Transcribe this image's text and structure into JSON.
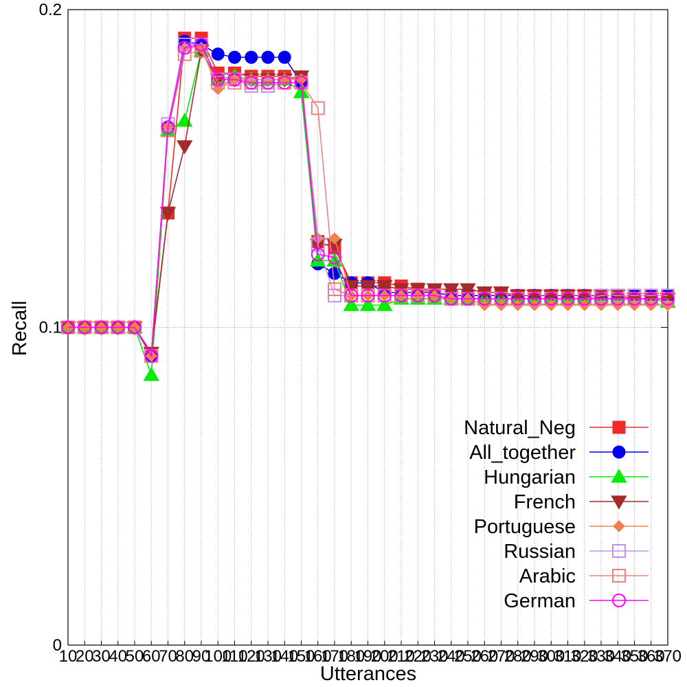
{
  "chart_data": {
    "type": "line",
    "xlabel": "Utterances",
    "ylabel": "Recall",
    "ylim": [
      0,
      0.2
    ],
    "y_ticks": [
      "0",
      "0.1",
      "0.2"
    ],
    "grid": "vertical dotted",
    "legend_position": "bottom-right",
    "categories": [
      "10",
      "20",
      "30",
      "40",
      "50",
      "60",
      "70",
      "80",
      "90",
      "100",
      "110",
      "120",
      "130",
      "140",
      "150",
      "160",
      "170",
      "180",
      "190",
      "200",
      "210",
      "220",
      "230",
      "240",
      "250",
      "260",
      "270",
      "280",
      "290",
      "300",
      "310",
      "320",
      "330",
      "340",
      "350",
      "360",
      "370"
    ],
    "series": [
      {
        "name": "Natural_Neg",
        "color": "#ee2a2a",
        "marker": "square-filled",
        "values": [
          0.1,
          0.1,
          0.1,
          0.1,
          0.1,
          0.091,
          0.136,
          0.191,
          0.191,
          0.18,
          0.18,
          0.179,
          0.179,
          0.179,
          0.178,
          0.127,
          0.125,
          0.114,
          0.114,
          0.114,
          0.113,
          0.112,
          0.111,
          0.11,
          0.11,
          0.11,
          0.11,
          0.11,
          0.11,
          0.11,
          0.11,
          0.11,
          0.11,
          0.11,
          0.11,
          0.11,
          0.11
        ]
      },
      {
        "name": "All_together ",
        "color": "#0000ee",
        "marker": "circle-filled",
        "values": [
          0.1,
          0.1,
          0.1,
          0.1,
          0.1,
          0.091,
          0.163,
          0.19,
          0.189,
          0.186,
          0.185,
          0.185,
          0.185,
          0.185,
          0.177,
          0.12,
          0.117,
          0.114,
          0.114,
          0.111,
          0.111,
          0.111,
          0.111,
          0.11,
          0.11,
          0.11,
          0.11,
          0.11,
          0.11,
          0.11,
          0.11,
          0.11,
          0.11,
          0.11,
          0.11,
          0.11,
          0.11
        ]
      },
      {
        "name": "Hungarian",
        "color": "#00ee00",
        "marker": "triangle-up-filled",
        "values": [
          0.1,
          0.1,
          0.1,
          0.1,
          0.1,
          0.085,
          0.162,
          0.165,
          0.187,
          0.178,
          0.179,
          0.178,
          0.178,
          0.178,
          0.174,
          0.121,
          0.121,
          0.107,
          0.107,
          0.107,
          0.109,
          0.109,
          0.109,
          0.109,
          0.109,
          0.109,
          0.109,
          0.109,
          0.109,
          0.109,
          0.109,
          0.109,
          0.109,
          0.109,
          0.109,
          0.109,
          0.108
        ]
      },
      {
        "name": "French",
        "color": "#a52a2a",
        "marker": "triangle-down-filled",
        "values": [
          0.1,
          0.1,
          0.1,
          0.1,
          0.1,
          0.092,
          0.136,
          0.157,
          0.187,
          0.178,
          0.178,
          0.178,
          0.178,
          0.178,
          0.179,
          0.126,
          0.126,
          0.113,
          0.113,
          0.113,
          0.112,
          0.112,
          0.112,
          0.112,
          0.112,
          0.111,
          0.111,
          0.11,
          0.11,
          0.11,
          0.11,
          0.11,
          0.11,
          0.11,
          0.109,
          0.109,
          0.109
        ]
      },
      {
        "name": "Portuguese",
        "color": "#f08050",
        "marker": "diamond-filled",
        "values": [
          0.1,
          0.1,
          0.1,
          0.1,
          0.1,
          0.091,
          0.163,
          0.188,
          0.188,
          0.175,
          0.178,
          0.178,
          0.178,
          0.178,
          0.178,
          0.128,
          0.128,
          0.11,
          0.11,
          0.11,
          0.11,
          0.11,
          0.11,
          0.109,
          0.109,
          0.107,
          0.107,
          0.107,
          0.107,
          0.107,
          0.107,
          0.107,
          0.107,
          0.107,
          0.107,
          0.107,
          0.107
        ]
      },
      {
        "name": "Russian",
        "color": "#c090f0",
        "marker": "square-open",
        "values": [
          0.1,
          0.1,
          0.1,
          0.1,
          0.1,
          0.091,
          0.164,
          0.189,
          0.189,
          0.178,
          0.178,
          0.176,
          0.176,
          0.177,
          0.177,
          0.126,
          0.11,
          0.11,
          0.11,
          0.11,
          0.11,
          0.11,
          0.11,
          0.109,
          0.109,
          0.109,
          0.109,
          0.109,
          0.109,
          0.109,
          0.109,
          0.109,
          0.11,
          0.11,
          0.11,
          0.11,
          0.11
        ]
      },
      {
        "name": "Arabic ",
        "color": "#f08080",
        "marker": "square-open",
        "values": [
          0.1,
          0.1,
          0.1,
          0.1,
          0.1,
          0.091,
          0.162,
          0.186,
          0.187,
          0.177,
          0.177,
          0.177,
          0.177,
          0.177,
          0.177,
          0.169,
          0.112,
          0.11,
          0.11,
          0.11,
          0.11,
          0.11,
          0.11,
          0.109,
          0.109,
          0.109,
          0.109,
          0.109,
          0.109,
          0.109,
          0.109,
          0.109,
          0.109,
          0.109,
          0.109,
          0.109,
          0.109
        ]
      },
      {
        "name": "German",
        "color": "#ff00ff",
        "marker": "circle-open",
        "values": [
          0.1,
          0.1,
          0.1,
          0.1,
          0.1,
          0.091,
          0.163,
          0.188,
          0.189,
          0.178,
          0.178,
          0.177,
          0.177,
          0.177,
          0.177,
          0.123,
          0.122,
          0.11,
          0.11,
          0.11,
          0.11,
          0.11,
          0.11,
          0.109,
          0.109,
          0.109,
          0.109,
          0.109,
          0.109,
          0.109,
          0.109,
          0.109,
          0.109,
          0.109,
          0.109,
          0.109,
          0.109
        ]
      }
    ]
  }
}
